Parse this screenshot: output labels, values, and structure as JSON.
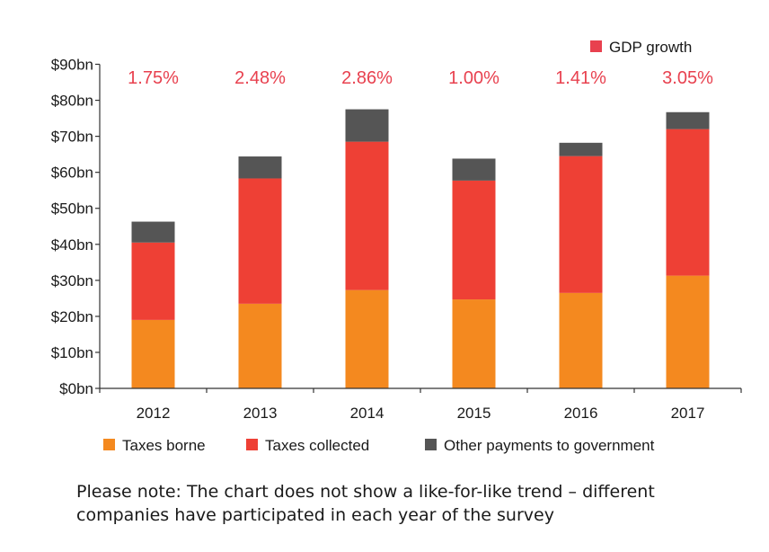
{
  "chart_data": {
    "type": "bar",
    "stacked": true,
    "categories": [
      "2012",
      "2013",
      "2014",
      "2015",
      "2016",
      "2017"
    ],
    "series": [
      {
        "name": "Taxes borne",
        "color": "#f4891f",
        "values": [
          19,
          23.5,
          27.3,
          24.7,
          26.5,
          31.3
        ]
      },
      {
        "name": "Taxes collected",
        "color": "#ee4035",
        "values": [
          21.5,
          34.8,
          41.2,
          33.0,
          38.0,
          40.7
        ]
      },
      {
        "name": "Other payments to government",
        "color": "#555555",
        "values": [
          5.8,
          6.1,
          9.0,
          6.1,
          3.7,
          4.7
        ]
      }
    ],
    "gdp_growth": {
      "name": "GDP growth",
      "color": "#e8414f",
      "labels": [
        "1.75%",
        "2.48%",
        "2.86%",
        "1.00%",
        "1.41%",
        "3.05%"
      ]
    },
    "ylim": [
      0,
      90
    ],
    "yticks": [
      0,
      10,
      20,
      30,
      40,
      50,
      60,
      70,
      80,
      90
    ],
    "ytick_labels": [
      "$0bn",
      "$10bn",
      "$20bn",
      "$30bn",
      "$40bn",
      "$50bn",
      "$60bn",
      "$70bn",
      "$80bn",
      "$90bn"
    ],
    "xlabel": "",
    "ylabel": "",
    "grid": false,
    "legend_position": "bottom"
  },
  "note": "Please note: The chart does not show a like-for-like trend – different companies have participated in each year of the survey"
}
